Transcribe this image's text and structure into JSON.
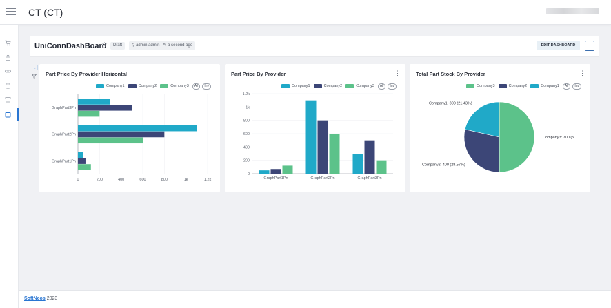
{
  "app": {
    "title": "CT (CT)"
  },
  "sidebar": {
    "items": [
      "cart-icon",
      "lock-icon",
      "link-icon",
      "database-icon",
      "archive-icon",
      "calendar-icon"
    ]
  },
  "dashboard": {
    "title": "UniConnDashBoard",
    "status": "Draft",
    "owner": "admin admin",
    "updated": "a second ago",
    "edit_label": "EDIT DASHBOARD",
    "more_label": "···"
  },
  "legend_pills": {
    "all": "All",
    "inv": "Inv"
  },
  "colors": {
    "company1": "#20a9c8",
    "company2": "#3c4677",
    "company3": "#5cc28a",
    "accent": "#2a76d2"
  },
  "chart_data": [
    {
      "type": "bar",
      "orientation": "horizontal",
      "title": "Part Price By Provider Horizontal",
      "categories": [
        "GraphPart3Pn",
        "GraphPart2Pn",
        "GraphPart1Pn"
      ],
      "series": [
        {
          "name": "Company1",
          "values": [
            300,
            1100,
            50
          ]
        },
        {
          "name": "Company2",
          "values": [
            500,
            800,
            70
          ]
        },
        {
          "name": "Company3",
          "values": [
            200,
            600,
            120
          ]
        }
      ],
      "xlim": [
        0,
        1200
      ],
      "xticks": [
        "0",
        "200",
        "400",
        "600",
        "800",
        "1k",
        "1.2k"
      ],
      "legend": "top-right"
    },
    {
      "type": "bar",
      "orientation": "vertical",
      "title": "Part Price By Provider",
      "categories": [
        "GraphPart1Pn",
        "GraphPart2Pn",
        "GraphPart3Pn"
      ],
      "series": [
        {
          "name": "Company1",
          "values": [
            50,
            1100,
            300
          ]
        },
        {
          "name": "Company2",
          "values": [
            70,
            800,
            500
          ]
        },
        {
          "name": "Company3",
          "values": [
            120,
            600,
            200
          ]
        }
      ],
      "ylim": [
        0,
        1200
      ],
      "yticks": [
        "0",
        "200",
        "400",
        "600",
        "800",
        "1k",
        "1.2k"
      ],
      "legend": "top-right"
    },
    {
      "type": "pie",
      "title": "Total Part Stock By Provider",
      "slices": [
        {
          "name": "Company3",
          "value": 700,
          "label": "Company3: 700 (5..."
        },
        {
          "name": "Company2",
          "value": 400,
          "label": "Company2: 400 (28.57%)"
        },
        {
          "name": "Company1",
          "value": 300,
          "label": "Company1: 300 (21.43%)"
        }
      ],
      "legend_order": [
        "Company3",
        "Company2",
        "Company1"
      ],
      "legend": "top-right"
    }
  ],
  "footer": {
    "brand": "SoftNeos",
    "year": "2023"
  }
}
